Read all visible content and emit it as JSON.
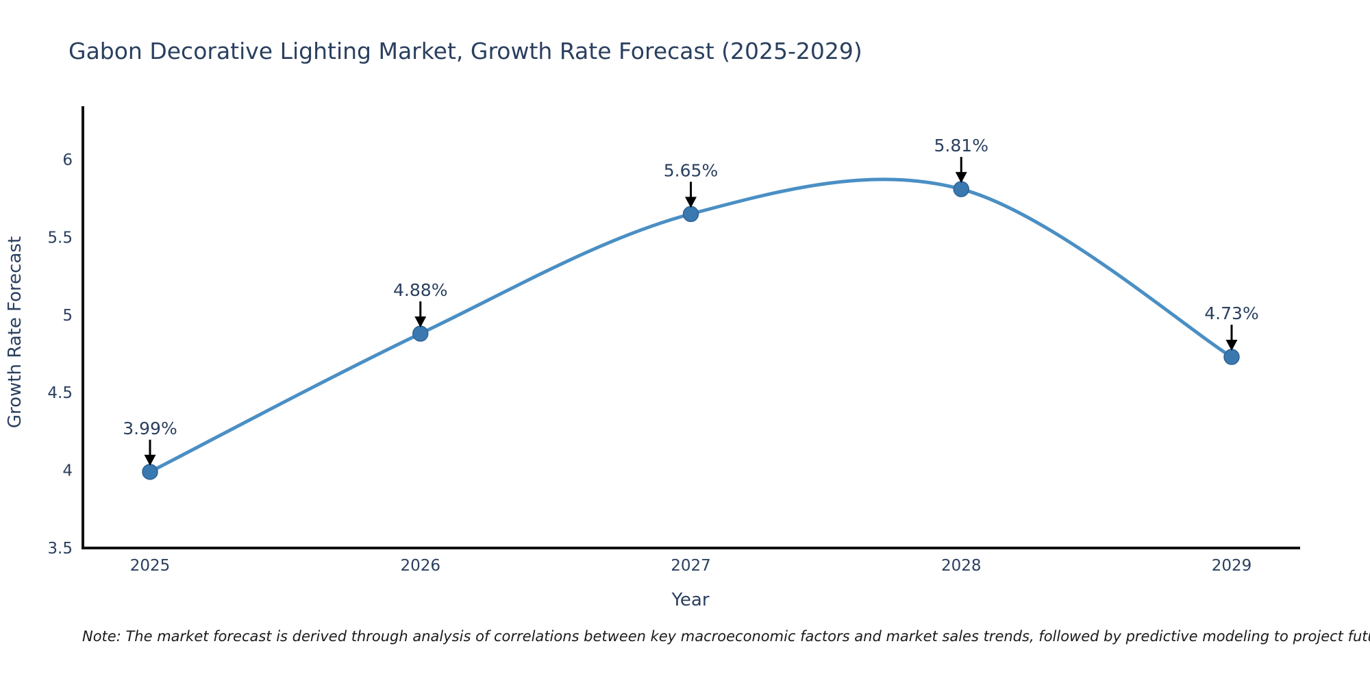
{
  "chart_data": {
    "type": "line",
    "line_shape": "spline",
    "title": "Gabon Decorative Lighting Market, Growth Rate Forecast (2025-2029)",
    "xlabel": "Year",
    "ylabel": "Growth Rate Forecast",
    "categories": [
      "2025",
      "2026",
      "2027",
      "2028",
      "2029"
    ],
    "values": [
      3.99,
      4.88,
      5.65,
      5.81,
      4.73
    ],
    "point_labels": [
      "3.99%",
      "4.88%",
      "5.65%",
      "5.81%",
      "4.73%"
    ],
    "ytick_labels": [
      "3.5",
      "4",
      "4.5",
      "5",
      "5.5",
      "6"
    ],
    "yticks": [
      3.5,
      4,
      4.5,
      5,
      5.5,
      6
    ],
    "ylim": [
      3.5,
      6.35
    ],
    "grid": false,
    "legend": false,
    "note": "Note: The market forecast is derived through analysis of correlations between key macroeconomic factors and market sales trends, followed by predictive modeling to project future sales",
    "colors": {
      "line": "#4a8fc4",
      "marker": "#3a78b0",
      "marker_edge": "#2e6394",
      "arrow": "#000000",
      "axis": "#111111",
      "text": "#2a3f5f"
    }
  }
}
